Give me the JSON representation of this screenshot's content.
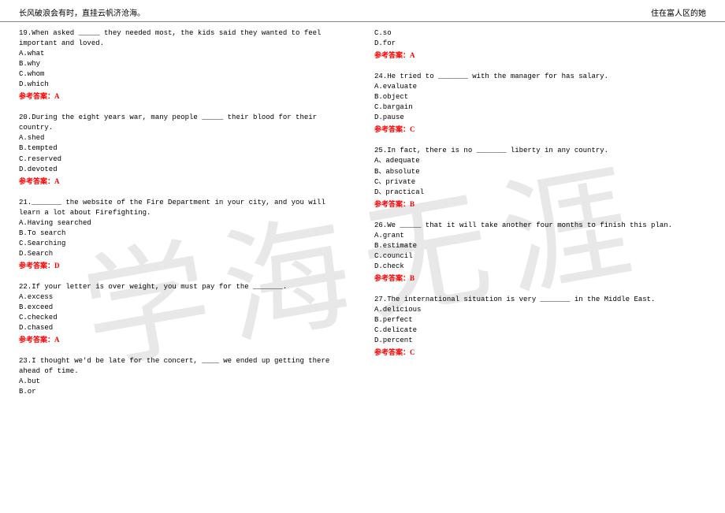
{
  "header": {
    "left": "长风破浪会有时，直挂云帆济沧海。",
    "right": "住在富人区的她"
  },
  "watermark": "学海无涯",
  "answer_label_prefix": "参考答案：",
  "left_col": {
    "q19": {
      "text": "19.When asked _____ they needed most, the kids said they wanted to feel important and loved.",
      "opts": [
        "A.what",
        "B.why",
        "C.whom",
        "D.which"
      ],
      "ans": "A"
    },
    "q20": {
      "text": "20.During the eight years war, many people _____ their blood for their country.",
      "opts": [
        "A.shed",
        "B.tempted",
        "C.reserved",
        "D.devoted"
      ],
      "ans": "A"
    },
    "q21": {
      "text": "21._______ the website of the Fire Department in your city, and you will learn a lot about Firefighting.",
      "opts": [
        "A.Having searched",
        "B.To search",
        "C.Searching",
        "D.Search"
      ],
      "ans": "D"
    },
    "q22": {
      "text": "22.If your letter is over weight, you must pay for the _______.",
      "opts": [
        "A.excess",
        "B.exceed",
        "C.checked",
        "D.chased"
      ],
      "ans": "A"
    },
    "q23": {
      "text": "23.I thought we'd be late for the concert, ____ we ended up getting there ahead of time.",
      "opts": [
        "A.but",
        "B.or"
      ]
    }
  },
  "right_col": {
    "q23_cont": {
      "opts": [
        "C.so",
        "D.for"
      ],
      "ans": "A"
    },
    "q24": {
      "text": "24.He tried to _______ with the manager for has salary.",
      "opts": [
        "A.evaluate",
        "B.object",
        "C.bargain",
        "D.pause"
      ],
      "ans": "C"
    },
    "q25": {
      "text": "25.In fact, there is no _______ liberty in any country.",
      "opts": [
        "A、adequate",
        "B、absolute",
        "C、private",
        "D、practical"
      ],
      "ans": "B"
    },
    "q26": {
      "text": "26.We _____ that it will take another four months to finish this plan.",
      "opts": [
        "A.grant",
        "B.estimate",
        "C.council",
        "D.check"
      ],
      "ans": "B"
    },
    "q27": {
      "text": "27.The international situation is very _______ in the Middle East.",
      "opts": [
        "A.delicious",
        "B.perfect",
        "C.delicate",
        "D.percent"
      ],
      "ans": "C"
    }
  }
}
